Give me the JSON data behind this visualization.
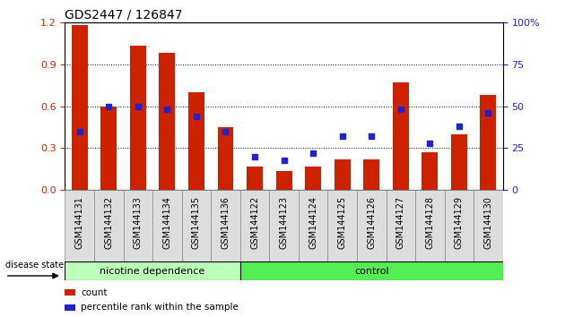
{
  "title": "GDS2447 / 126847",
  "samples": [
    "GSM144131",
    "GSM144132",
    "GSM144133",
    "GSM144134",
    "GSM144135",
    "GSM144136",
    "GSM144122",
    "GSM144123",
    "GSM144124",
    "GSM144125",
    "GSM144126",
    "GSM144127",
    "GSM144128",
    "GSM144129",
    "GSM144130"
  ],
  "count_values": [
    1.18,
    0.6,
    1.03,
    0.98,
    0.7,
    0.45,
    0.17,
    0.14,
    0.17,
    0.22,
    0.22,
    0.77,
    0.27,
    0.4,
    0.68
  ],
  "percentile_values": [
    35,
    50,
    50,
    48,
    44,
    35,
    20,
    18,
    22,
    32,
    32,
    48,
    28,
    38,
    46
  ],
  "bar_color": "#cc2200",
  "dot_color": "#2222cc",
  "background_color": "#ffffff",
  "ylim_left": [
    0,
    1.2
  ],
  "ylim_right": [
    0,
    100
  ],
  "yticks_left": [
    0,
    0.3,
    0.6,
    0.9,
    1.2
  ],
  "yticks_right": [
    0,
    25,
    50,
    75,
    100
  ],
  "grid_values": [
    0.3,
    0.6,
    0.9
  ],
  "n_nicotine": 6,
  "n_control": 9,
  "nicotine_color": "#bbffbb",
  "control_color": "#55ee55",
  "label_disease_state": "disease state",
  "label_nicotine": "nicotine dependence",
  "label_control": "control",
  "legend_count": "count",
  "legend_percentile": "percentile rank within the sample",
  "title_fontsize": 10,
  "bar_width": 0.55,
  "dot_size": 22,
  "tick_label_fontsize": 7,
  "right_axis_color": "#2222cc",
  "left_axis_color": "#cc2200",
  "sample_box_color": "#dddddd",
  "sample_box_edgecolor": "#888888"
}
